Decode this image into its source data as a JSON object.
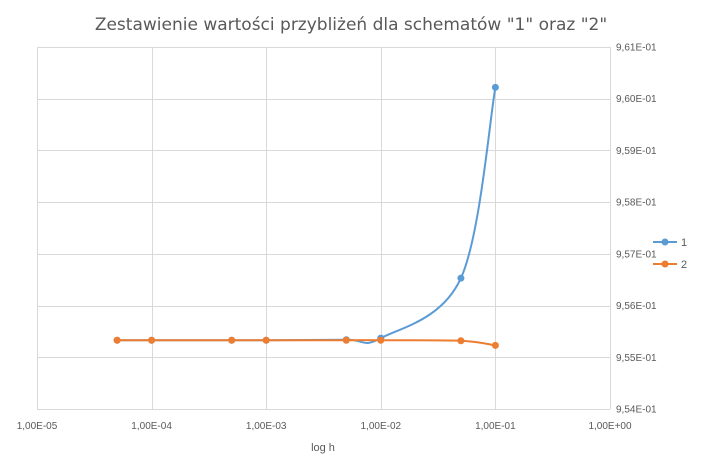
{
  "chart_data": {
    "type": "scatter",
    "title": "Zestawienie wartości przybliżeń dla schematów \"1\" oraz \"2\"",
    "xlabel": "log h",
    "ylabel": "",
    "x_scale": "log",
    "x_ticks": [
      1e-05,
      0.0001,
      0.001,
      0.01,
      0.1,
      1
    ],
    "x_tick_labels": [
      "1,00E-05",
      "1,00E-04",
      "1,00E-03",
      "1,00E-02",
      "1,00E-01",
      "1,00E+00"
    ],
    "xlim": [
      1e-05,
      1
    ],
    "y_ticks": [
      0.954,
      0.955,
      0.956,
      0.957,
      0.958,
      0.959,
      0.96,
      0.961
    ],
    "y_tick_labels": [
      "9,54E-01",
      "9,55E-01",
      "9,56E-01",
      "9,57E-01",
      "9,58E-01",
      "9,59E-01",
      "9,60E-01",
      "9,61E-01"
    ],
    "ylim": [
      0.954,
      0.961
    ],
    "y_axis_side": "right",
    "grid": true,
    "smooth_lines": true,
    "legend_position": "right",
    "series": [
      {
        "name": "1",
        "color": "#5b9bd5",
        "points": [
          {
            "x": 5e-05,
            "y": 0.95533
          },
          {
            "x": 0.0001,
            "y": 0.95533
          },
          {
            "x": 0.0005,
            "y": 0.95533
          },
          {
            "x": 0.001,
            "y": 0.95533
          },
          {
            "x": 0.005,
            "y": 0.95534
          },
          {
            "x": 0.01,
            "y": 0.95537
          },
          {
            "x": 0.05,
            "y": 0.95653
          },
          {
            "x": 0.1,
            "y": 0.96022
          }
        ]
      },
      {
        "name": "2",
        "color": "#ed7d31",
        "points": [
          {
            "x": 5e-05,
            "y": 0.95533
          },
          {
            "x": 0.0001,
            "y": 0.95533
          },
          {
            "x": 0.0005,
            "y": 0.95533
          },
          {
            "x": 0.001,
            "y": 0.95533
          },
          {
            "x": 0.005,
            "y": 0.95533
          },
          {
            "x": 0.01,
            "y": 0.95533
          },
          {
            "x": 0.05,
            "y": 0.95532
          },
          {
            "x": 0.1,
            "y": 0.95523
          }
        ]
      }
    ]
  }
}
